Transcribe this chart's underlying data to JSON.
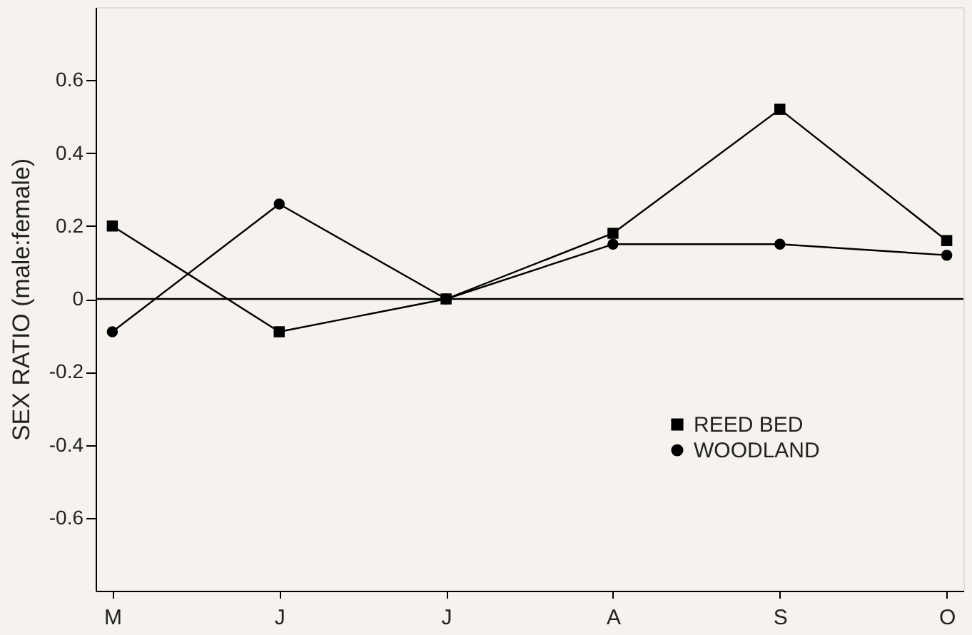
{
  "chart_data": {
    "type": "line",
    "ylabel": "SEX RATIO (male:female)",
    "categories": [
      "M",
      "J",
      "J",
      "A",
      "S",
      "O"
    ],
    "series": [
      {
        "name": "REED BED",
        "color": "#000000",
        "marker": "square",
        "values": [
          0.2,
          -0.09,
          0.0,
          0.18,
          0.52,
          0.16
        ]
      },
      {
        "name": "WOODLAND",
        "color": "#000000",
        "marker": "circle",
        "values": [
          -0.09,
          0.26,
          0.0,
          0.15,
          0.15,
          0.12
        ]
      }
    ],
    "ylim": [
      -0.8,
      0.8
    ],
    "yticks": [
      -0.6,
      -0.4,
      -0.2,
      0,
      0.2,
      0.4,
      0.6
    ],
    "ref_lines": [
      {
        "axis": "y",
        "value": 0,
        "color": "#000000"
      }
    ],
    "grid": false,
    "legend": "bottom right",
    "line_style": "solid"
  }
}
